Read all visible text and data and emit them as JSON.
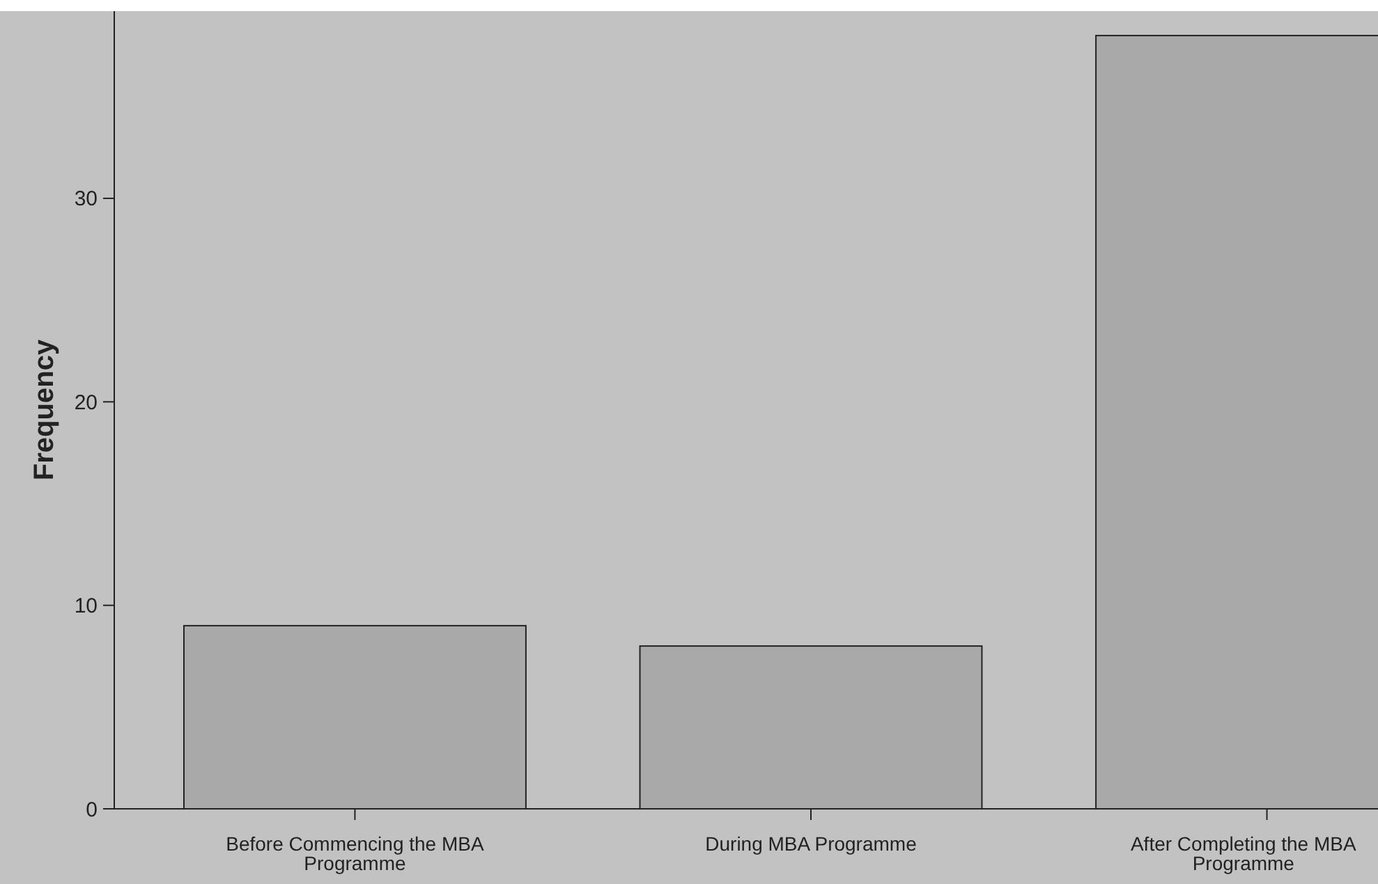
{
  "chart_data": {
    "type": "bar",
    "ylabel": "Frequency",
    "categories": [
      "Before Commencing the MBA Programme",
      "During MBA Programme",
      "After Completing the MBA Programme"
    ],
    "values": [
      9,
      8,
      38
    ],
    "color": "#a9a9a9",
    "ylim": [
      0,
      39.2
    ],
    "yticks": [
      0,
      10,
      20,
      30
    ],
    "grid": false
  }
}
